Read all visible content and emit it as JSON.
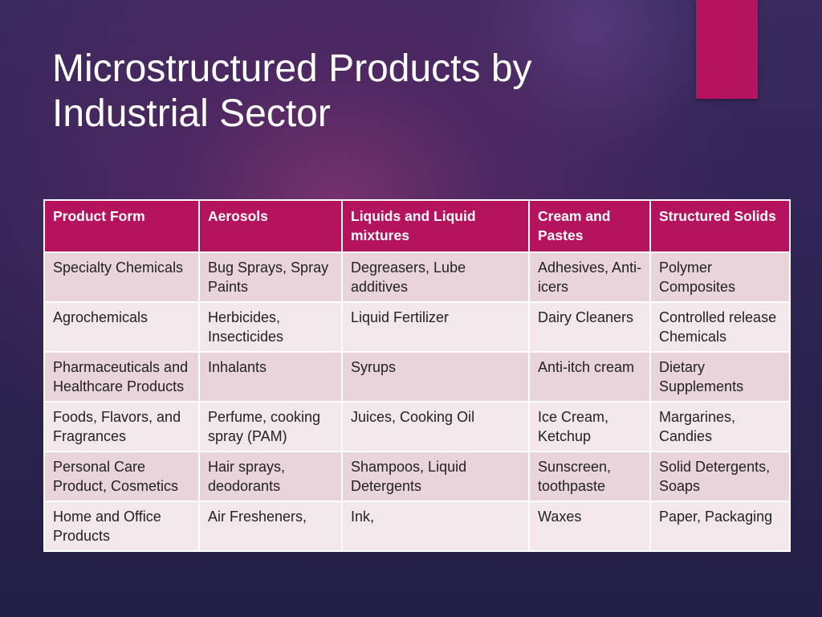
{
  "slide": {
    "title_line1": "Microstructured Products by",
    "title_line2": "Industrial Sector",
    "accent_color": "#b5135e"
  },
  "table": {
    "headers": [
      "Product Form",
      "Aerosols",
      "Liquids and Liquid mixtures",
      "Cream and Pastes",
      "Structured Solids"
    ],
    "rows": [
      [
        "Specialty Chemicals",
        "Bug Sprays, Spray Paints",
        "Degreasers, Lube additives",
        "Adhesives, Anti-icers",
        "Polymer Composites"
      ],
      [
        "Agrochemicals",
        "Herbicides, Insecticides",
        "Liquid Fertilizer",
        "Dairy Cleaners",
        "Controlled release Chemicals"
      ],
      [
        "Pharmaceuticals and Healthcare Products",
        "Inhalants",
        "Syrups",
        "Anti-itch cream",
        "Dietary Supplements"
      ],
      [
        "Foods, Flavors, and Fragrances",
        "Perfume, cooking spray (PAM)",
        "Juices, Cooking Oil",
        "Ice Cream, Ketchup",
        "Margarines, Candies"
      ],
      [
        "Personal Care Product, Cosmetics",
        "Hair sprays, deodorants",
        "Shampoos, Liquid Detergents",
        "Sunscreen, toothpaste",
        "Solid Detergents, Soaps"
      ],
      [
        "Home and Office Products",
        "Air Fresheners,",
        "Ink,",
        "Waxes",
        "Paper, Packaging"
      ]
    ]
  }
}
